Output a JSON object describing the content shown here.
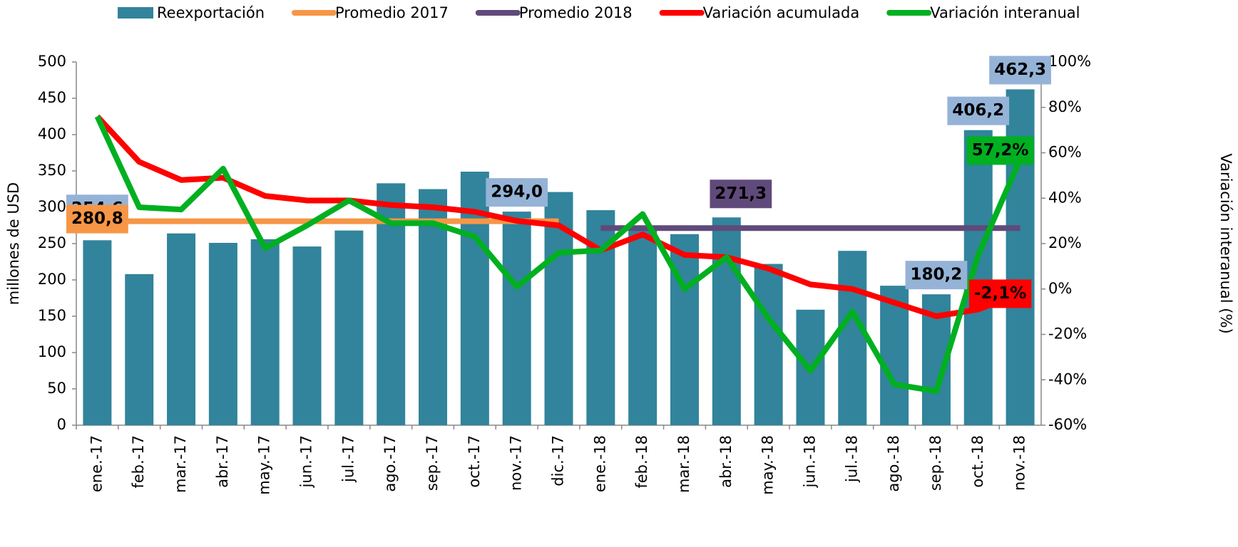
{
  "chart_data": {
    "type": "bar_line",
    "categories": [
      "ene.-17",
      "feb.-17",
      "mar.-17",
      "abr.-17",
      "may.-17",
      "jun.-17",
      "jul.-17",
      "ago.-17",
      "sep.-17",
      "oct.-17",
      "nov.-17",
      "dic.-17",
      "ene.-18",
      "feb.-18",
      "mar.-18",
      "abr.-18",
      "may.-18",
      "jun.-18",
      "jul.-18",
      "ago.-18",
      "sep.-18",
      "oct.-18",
      "nov.-18"
    ],
    "series": [
      {
        "name": "Reexportación",
        "color": "#31849b",
        "kind": "bar",
        "values": [
          254.6,
          208,
          264,
          251,
          256,
          246,
          268,
          333,
          325,
          349,
          294.0,
          321,
          296,
          275,
          263,
          286,
          222,
          159,
          240,
          192,
          180.2,
          406.2,
          462.3
        ],
        "value_labels": [
          "254,6",
          null,
          null,
          null,
          null,
          null,
          null,
          null,
          null,
          null,
          "294,0",
          null,
          null,
          null,
          null,
          null,
          null,
          null,
          null,
          null,
          "180,2",
          "406,2",
          "462,3"
        ]
      },
      {
        "name": "Promedio 2017",
        "color": "#f79646",
        "kind": "line",
        "values": [
          280.8,
          280.8,
          280.8,
          280.8,
          280.8,
          280.8,
          280.8,
          280.8,
          280.8,
          280.8,
          280.8,
          280.8,
          null,
          null,
          null,
          null,
          null,
          null,
          null,
          null,
          null,
          null,
          null
        ],
        "value_labels": [
          "280,8",
          null,
          null,
          null,
          null,
          null,
          null,
          null,
          null,
          null,
          null,
          null,
          null,
          null,
          null,
          null,
          null,
          null,
          null,
          null,
          null,
          null,
          null
        ]
      },
      {
        "name": "Promedio 2018",
        "color": "#604a7b",
        "kind": "line",
        "values": [
          null,
          null,
          null,
          null,
          null,
          null,
          null,
          null,
          null,
          null,
          null,
          null,
          271.3,
          271.3,
          271.3,
          271.3,
          271.3,
          271.3,
          271.3,
          271.3,
          271.3,
          271.3,
          271.3
        ],
        "value_labels": [
          null,
          "271,3",
          null,
          null,
          null,
          null,
          null,
          null,
          null,
          null,
          null,
          null,
          null,
          null,
          null,
          null,
          null,
          null,
          null,
          null,
          null,
          null,
          null
        ]
      },
      {
        "name": "Variación acumulada",
        "color": "#ff0000",
        "kind": "line",
        "axis": "y2",
        "values": [
          76,
          56,
          48,
          49,
          41,
          39,
          39,
          37,
          36,
          34,
          30,
          28,
          17,
          24,
          15,
          14,
          9,
          2,
          0,
          -6,
          -12,
          -9,
          -2.1
        ],
        "value_labels": [
          null,
          null,
          null,
          null,
          null,
          null,
          null,
          null,
          null,
          null,
          null,
          null,
          null,
          null,
          null,
          null,
          null,
          null,
          null,
          null,
          null,
          null,
          "-2,1%"
        ]
      },
      {
        "name": "Variación interanual",
        "color": "#00b020",
        "kind": "line",
        "axis": "y2",
        "values": [
          76,
          36,
          35,
          53,
          18,
          28,
          39,
          29,
          29,
          23,
          1,
          16,
          17,
          33,
          0,
          14,
          -13,
          -36,
          -10,
          -42,
          -45,
          15,
          57.2
        ],
        "value_labels": [
          null,
          null,
          null,
          null,
          null,
          null,
          null,
          null,
          null,
          null,
          null,
          null,
          null,
          null,
          null,
          null,
          null,
          null,
          null,
          null,
          null,
          null,
          "57,2%"
        ]
      }
    ],
    "y_label": "millones de USD",
    "y2_label": "Variación interanual (%)",
    "ylim": [
      0,
      500
    ],
    "yticks": [
      0,
      50,
      100,
      150,
      200,
      250,
      300,
      350,
      400,
      450,
      500
    ],
    "y2lim": [
      -60,
      100
    ],
    "y2ticks": [
      {
        "value": -60,
        "label": "-60%"
      },
      {
        "value": -40,
        "label": "-40%"
      },
      {
        "value": -20,
        "label": "-20%"
      },
      {
        "value": 0,
        "label": "0%"
      },
      {
        "value": 20,
        "label": "20%"
      },
      {
        "value": 40,
        "label": "40%"
      },
      {
        "value": 60,
        "label": "60%"
      },
      {
        "value": 80,
        "label": "80%"
      },
      {
        "value": 100,
        "label": "100%"
      }
    ],
    "legend": "top"
  }
}
